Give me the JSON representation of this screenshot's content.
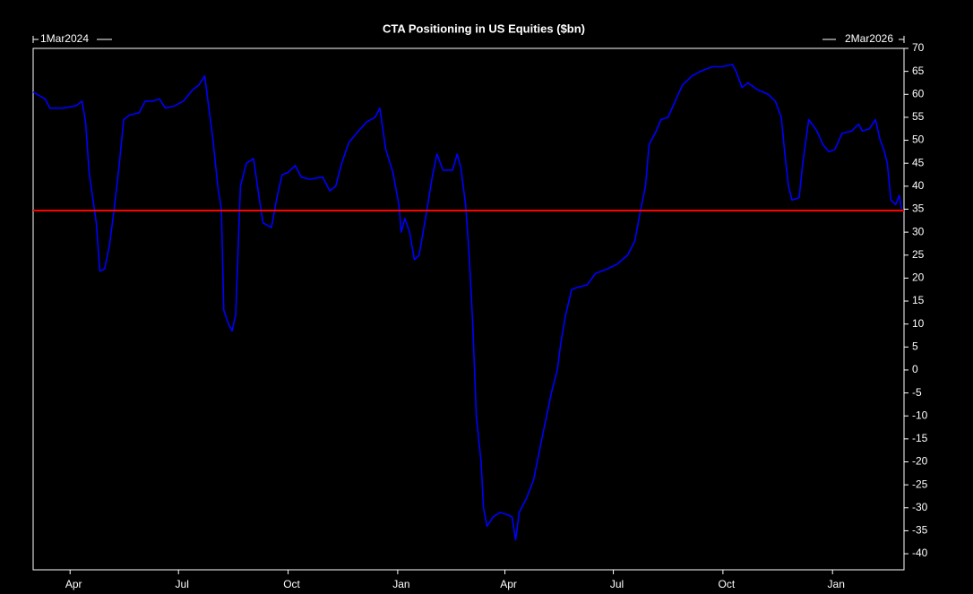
{
  "chart_data": {
    "type": "line",
    "title": "CTA Positioning in US Equities ($bn)",
    "start_label": "1Mar2024",
    "end_label": "2Mar2026",
    "color": "#0000ff",
    "x": [
      "2024-03-01",
      "2024-03-11",
      "2024-03-15",
      "2024-03-26",
      "2024-04-06",
      "2024-04-11",
      "2024-04-14",
      "2024-04-17",
      "2024-04-23",
      "2024-04-26",
      "2024-04-30",
      "2024-05-04",
      "2024-05-08",
      "2024-05-12",
      "2024-05-16",
      "2024-05-21",
      "2024-05-29",
      "2024-06-03",
      "2024-06-09",
      "2024-06-15",
      "2024-06-20",
      "2024-06-28",
      "2024-07-05",
      "2024-07-13",
      "2024-07-18",
      "2024-07-23",
      "2024-07-26",
      "2024-07-30",
      "2024-08-03",
      "2024-08-06",
      "2024-08-08",
      "2024-08-12",
      "2024-08-15",
      "2024-08-18",
      "2024-08-20",
      "2024-08-22",
      "2024-08-27",
      "2024-09-02",
      "2024-09-07",
      "2024-09-10",
      "2024-09-17",
      "2024-09-22",
      "2024-09-26",
      "2024-10-01",
      "2024-10-07",
      "2024-10-12",
      "2024-10-19",
      "2024-10-30",
      "2024-11-05",
      "2024-11-10",
      "2024-11-15",
      "2024-11-21",
      "2024-11-29",
      "2024-12-06",
      "2024-12-13",
      "2024-12-17",
      "2024-12-22",
      "2024-12-28",
      "2025-01-02",
      "2025-01-04",
      "2025-01-07",
      "2025-01-11",
      "2025-01-15",
      "2025-01-19",
      "2025-01-25",
      "2025-01-30",
      "2025-02-03",
      "2025-02-08",
      "2025-02-16",
      "2025-02-20",
      "2025-02-23",
      "2025-02-27",
      "2025-03-02",
      "2025-03-05",
      "2025-03-08",
      "2025-03-12",
      "2025-03-14",
      "2025-03-17",
      "2025-03-22",
      "2025-03-28",
      "2025-04-03",
      "2025-04-07",
      "2025-04-10",
      "2025-04-13",
      "2025-04-19",
      "2025-04-25",
      "2025-05-02",
      "2025-05-10",
      "2025-05-15",
      "2025-05-18",
      "2025-05-22",
      "2025-05-27",
      "2025-06-01",
      "2025-06-09",
      "2025-06-16",
      "2025-06-26",
      "2025-07-04",
      "2025-07-13",
      "2025-07-19",
      "2025-07-24",
      "2025-07-28",
      "2025-07-31",
      "2025-08-06",
      "2025-08-10",
      "2025-08-16",
      "2025-08-21",
      "2025-08-28",
      "2025-09-05",
      "2025-09-12",
      "2025-09-22",
      "2025-09-30",
      "2025-10-09",
      "2025-10-12",
      "2025-10-17",
      "2025-10-22",
      "2025-10-30",
      "2025-11-08",
      "2025-11-14",
      "2025-11-19",
      "2025-11-22",
      "2025-11-25",
      "2025-11-28",
      "2025-12-04",
      "2025-12-07",
      "2025-12-12",
      "2025-12-19",
      "2025-12-24",
      "2025-12-29",
      "2026-01-03",
      "2026-01-09",
      "2026-01-17",
      "2026-01-23",
      "2026-01-26",
      "2026-02-01",
      "2026-02-06",
      "2026-02-10",
      "2026-02-13",
      "2026-02-16",
      "2026-02-19",
      "2026-02-23",
      "2026-02-26",
      "2026-02-28"
    ],
    "values": [
      60.5,
      59,
      57,
      57,
      57.5,
      58.5,
      54,
      43,
      32,
      21.5,
      22,
      27,
      35,
      44,
      54.5,
      55.5,
      56,
      58.5,
      58.5,
      59,
      57,
      57.5,
      58.5,
      61,
      62,
      64,
      58,
      50,
      40,
      35,
      13,
      10,
      8.5,
      12,
      26,
      40,
      45,
      46,
      37,
      32,
      31,
      38,
      42.5,
      43,
      44.5,
      42,
      41.5,
      42,
      39,
      40,
      45,
      49.5,
      52,
      54,
      55,
      57,
      48,
      43,
      36,
      30,
      33,
      30,
      24,
      25,
      34,
      42,
      47,
      43.5,
      43.5,
      47,
      44,
      36,
      25,
      10,
      -10,
      -20,
      -30,
      -34,
      -32,
      -31,
      -31.5,
      -32,
      -37,
      -31,
      -28,
      -24,
      -15,
      -5,
      0,
      6,
      12,
      17.5,
      18,
      18.5,
      21,
      22,
      23,
      25,
      28,
      35,
      40,
      49,
      52,
      54.5,
      55,
      58,
      62,
      64,
      65,
      66,
      66,
      66.5,
      65,
      61.5,
      62.5,
      61,
      60,
      58.5,
      55,
      47,
      40,
      37,
      37.5,
      45,
      54.5,
      52,
      49,
      47.5,
      48,
      51.5,
      52,
      53.5,
      52,
      52.5,
      54.5,
      50,
      48,
      45,
      37,
      36,
      38,
      35
    ],
    "xlim": [
      "2024-03-01",
      "2026-03-02"
    ],
    "xticks": [
      {
        "value": "2024-04-01",
        "label": "Apr"
      },
      {
        "value": "2024-07-01",
        "label": "Jul"
      },
      {
        "value": "2024-10-01",
        "label": "Oct"
      },
      {
        "value": "2025-01-01",
        "label": "Jan"
      },
      {
        "value": "2025-04-01",
        "label": "Apr"
      },
      {
        "value": "2025-07-01",
        "label": "Jul"
      },
      {
        "value": "2025-10-01",
        "label": "Oct"
      },
      {
        "value": "2026-01-01",
        "label": "Jan"
      }
    ],
    "ylim": [
      -43.5,
      70
    ],
    "yticks": [
      70,
      65,
      60,
      55,
      50,
      45,
      40,
      35,
      30,
      25,
      20,
      15,
      10,
      5,
      0,
      -5,
      -10,
      -15,
      -20,
      -25,
      -30,
      -35,
      -40
    ],
    "reference_line": {
      "value": 34.7,
      "color": "#ff0000"
    },
    "grid": false
  }
}
